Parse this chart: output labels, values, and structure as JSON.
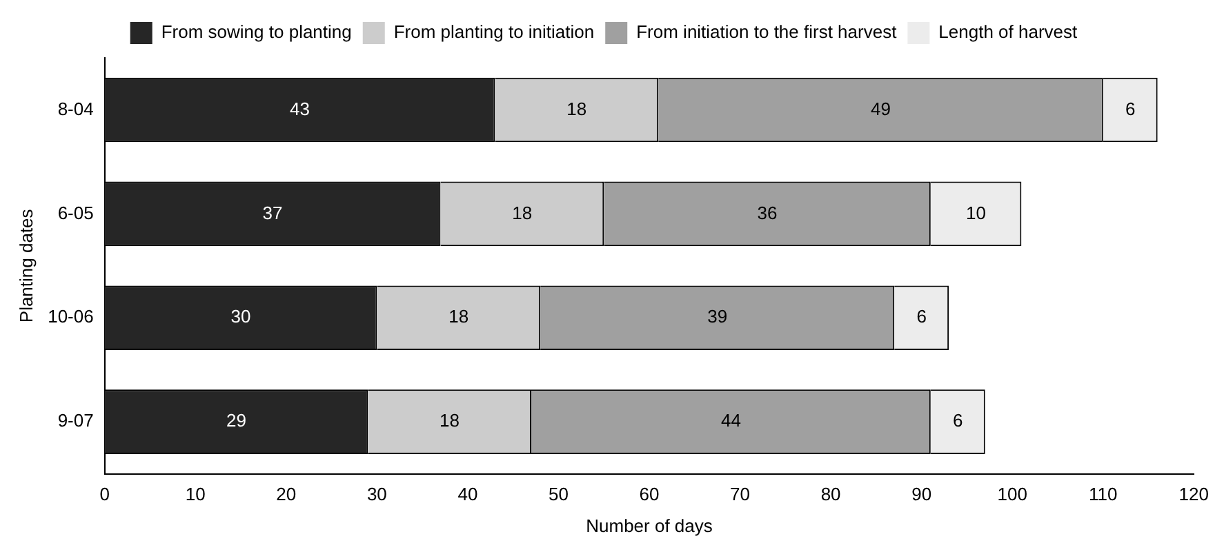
{
  "chart_data": {
    "type": "bar",
    "orientation": "horizontal",
    "stacked": true,
    "xlabel": "Number of days",
    "ylabel": "Planting dates",
    "categories": [
      "8-04",
      "6-05",
      "10-06",
      "9-07"
    ],
    "series": [
      {
        "name": "From sowing to planting",
        "color": "#262626",
        "values": [
          43,
          37,
          30,
          29
        ]
      },
      {
        "name": "From planting to initiation",
        "color": "#cccccc",
        "values": [
          18,
          18,
          18,
          18
        ]
      },
      {
        "name": "From initiation to the first harvest",
        "color": "#a0a0a0",
        "values": [
          49,
          36,
          39,
          44
        ]
      },
      {
        "name": "Length of harvest",
        "color": "#ececec",
        "values": [
          6,
          10,
          6,
          6
        ]
      }
    ],
    "xlim": [
      0,
      120
    ],
    "xticks": [
      0,
      10,
      20,
      30,
      40,
      50,
      60,
      70,
      80,
      90,
      100,
      110,
      120
    ],
    "grid": false,
    "legend": "top",
    "data_labels": true
  }
}
